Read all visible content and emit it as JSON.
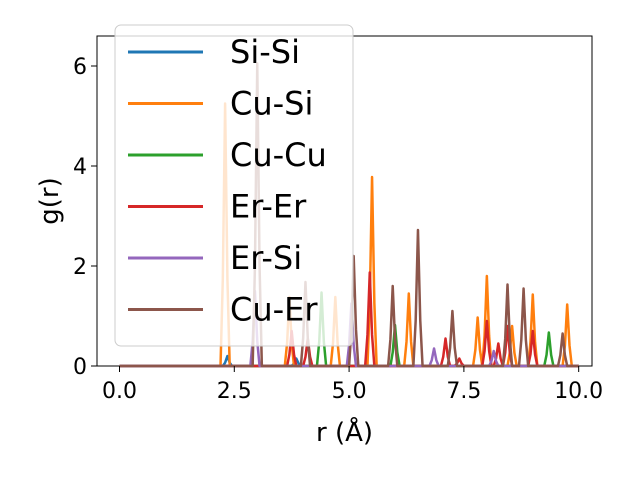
{
  "chart_data": {
    "type": "line",
    "xlabel": "r (Å)",
    "ylabel": "g(r)",
    "xlim": [
      -0.49,
      10.29
    ],
    "ylim": [
      0,
      6.6
    ],
    "xticks": [
      0.0,
      2.5,
      5.0,
      7.5,
      10.0
    ],
    "xtick_labels": [
      "0.0",
      "2.5",
      "5.0",
      "7.5",
      "10.0"
    ],
    "yticks": [
      0,
      2,
      4,
      6
    ],
    "ytick_labels": [
      "0",
      "2",
      "4",
      "6"
    ],
    "grid": false,
    "legend_position": "top-left",
    "series": [
      {
        "name": "Si-Si",
        "color": "#1f77b4",
        "peaks": [
          [
            2.35,
            0.2
          ],
          [
            3.85,
            0.15
          ]
        ]
      },
      {
        "name": "Cu-Si",
        "color": "#ff7f0e",
        "peaks": [
          [
            2.3,
            5.25
          ],
          [
            3.7,
            1.38
          ],
          [
            4.7,
            1.38
          ],
          [
            5.5,
            3.78
          ],
          [
            6.3,
            1.45
          ],
          [
            7.8,
            0.97
          ],
          [
            8.0,
            1.8
          ],
          [
            8.55,
            0.8
          ],
          [
            9.0,
            1.43
          ],
          [
            9.75,
            1.23
          ]
        ]
      },
      {
        "name": "Cu-Cu",
        "color": "#2ca02c",
        "peaks": [
          [
            4.4,
            1.47
          ],
          [
            6.0,
            0.82
          ],
          [
            9.35,
            0.67
          ]
        ]
      },
      {
        "name": "Er-Er",
        "color": "#d62728",
        "peaks": [
          [
            3.75,
            0.7
          ],
          [
            4.1,
            0.55
          ],
          [
            5.45,
            1.87
          ],
          [
            7.1,
            0.55
          ],
          [
            7.4,
            0.15
          ],
          [
            8.0,
            0.9
          ],
          [
            8.25,
            0.45
          ],
          [
            8.45,
            0.8
          ],
          [
            9.0,
            0.7
          ]
        ]
      },
      {
        "name": "Er-Si",
        "color": "#9467bd",
        "peaks": [
          [
            2.95,
            1.5
          ],
          [
            5.05,
            1.25
          ],
          [
            6.85,
            0.35
          ],
          [
            8.15,
            0.3
          ]
        ]
      },
      {
        "name": "Cu-Er",
        "color": "#8c564b",
        "peaks": [
          [
            3.0,
            6.05
          ],
          [
            4.05,
            1.68
          ],
          [
            5.1,
            2.2
          ],
          [
            5.95,
            1.6
          ],
          [
            6.5,
            2.72
          ],
          [
            7.25,
            1.1
          ],
          [
            8.45,
            1.63
          ],
          [
            8.8,
            1.55
          ],
          [
            9.65,
            0.65
          ]
        ]
      }
    ]
  }
}
